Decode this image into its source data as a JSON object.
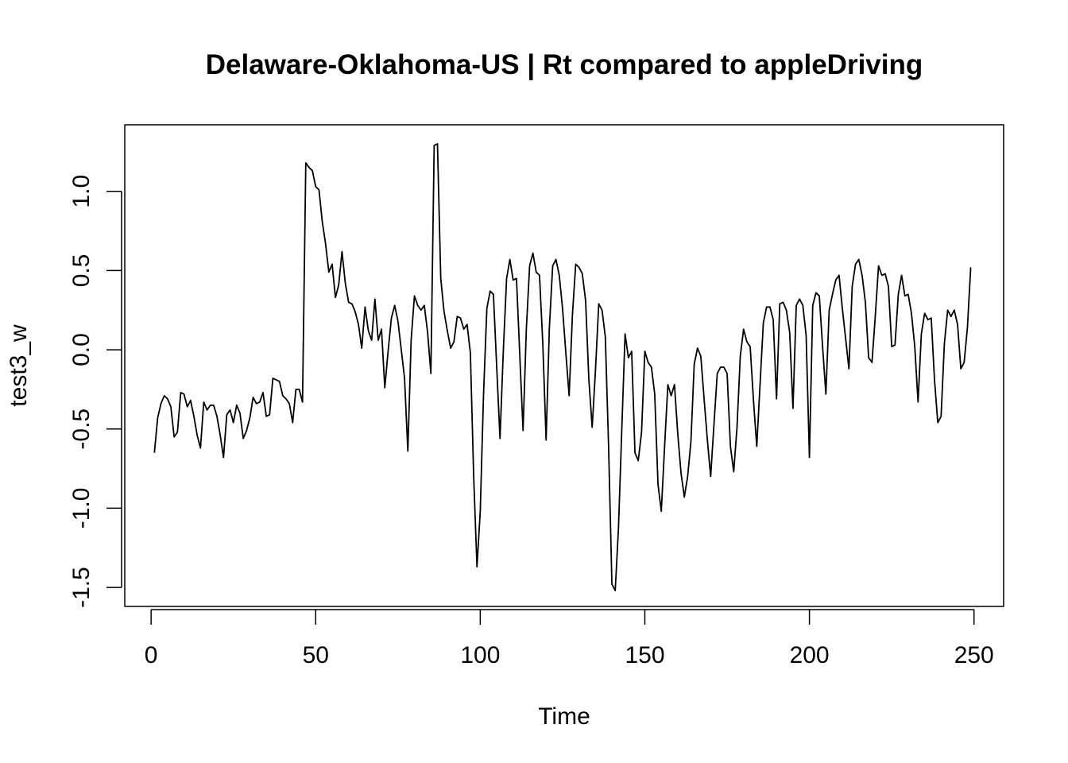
{
  "chart_data": {
    "type": "line",
    "title": "Delaware-Oklahoma-US | Rt compared to appleDriving",
    "xlabel": "Time",
    "ylabel": "test3_w",
    "xlim": [
      -8,
      259
    ],
    "ylim": [
      -1.62,
      1.42
    ],
    "x_ticks": [
      0,
      50,
      100,
      150,
      200,
      250
    ],
    "y_ticks": [
      -1.5,
      -1.0,
      -0.5,
      0.0,
      0.5,
      1.0
    ],
    "x_tick_labels": [
      "0",
      "50",
      "100",
      "150",
      "200",
      "250"
    ],
    "y_tick_labels": [
      "-1.5",
      "-1.0",
      "-0.5",
      "0.0",
      "0.5",
      "1.0"
    ],
    "grid": false,
    "legend": "none",
    "line_color": "#000000",
    "x_start": 1,
    "series": [
      {
        "values": [
          -0.65,
          -0.43,
          -0.34,
          -0.29,
          -0.31,
          -0.36,
          -0.55,
          -0.52,
          -0.27,
          -0.28,
          -0.36,
          -0.32,
          -0.42,
          -0.54,
          -0.62,
          -0.33,
          -0.38,
          -0.35,
          -0.35,
          -0.42,
          -0.54,
          -0.68,
          -0.41,
          -0.38,
          -0.46,
          -0.35,
          -0.4,
          -0.56,
          -0.51,
          -0.43,
          -0.3,
          -0.34,
          -0.33,
          -0.27,
          -0.42,
          -0.41,
          -0.18,
          -0.19,
          -0.2,
          -0.29,
          -0.31,
          -0.34,
          -0.46,
          -0.25,
          -0.25,
          -0.33,
          1.18,
          1.15,
          1.13,
          1.03,
          1.01,
          0.81,
          0.67,
          0.49,
          0.54,
          0.33,
          0.41,
          0.62,
          0.42,
          0.3,
          0.29,
          0.24,
          0.16,
          0.01,
          0.27,
          0.12,
          0.06,
          0.32,
          0.06,
          0.13,
          -0.24,
          -0.01,
          0.2,
          0.28,
          0.18,
          0.0,
          -0.18,
          -0.64,
          0.06,
          0.34,
          0.28,
          0.25,
          0.28,
          0.11,
          -0.15,
          1.29,
          1.3,
          0.45,
          0.24,
          0.12,
          0.01,
          0.05,
          0.21,
          0.2,
          0.13,
          0.16,
          -0.02,
          -0.8,
          -1.37,
          -1.02,
          -0.28,
          0.26,
          0.37,
          0.35,
          -0.11,
          -0.56,
          -0.01,
          0.45,
          0.57,
          0.44,
          0.45,
          -0.03,
          -0.51,
          0.13,
          0.53,
          0.61,
          0.49,
          0.47,
          0.04,
          -0.57,
          0.14,
          0.53,
          0.57,
          0.47,
          0.26,
          -0.02,
          -0.29,
          0.22,
          0.54,
          0.52,
          0.48,
          0.31,
          -0.19,
          -0.49,
          -0.13,
          0.29,
          0.25,
          0.08,
          -0.62,
          -1.48,
          -1.52,
          -1.12,
          -0.5,
          0.1,
          -0.05,
          -0.01,
          -0.65,
          -0.7,
          -0.52,
          -0.01,
          -0.08,
          -0.11,
          -0.28,
          -0.85,
          -1.02,
          -0.61,
          -0.22,
          -0.29,
          -0.22,
          -0.53,
          -0.78,
          -0.93,
          -0.8,
          -0.58,
          -0.09,
          0.01,
          -0.04,
          -0.31,
          -0.57,
          -0.8,
          -0.47,
          -0.15,
          -0.11,
          -0.11,
          -0.15,
          -0.61,
          -0.77,
          -0.49,
          -0.04,
          0.13,
          0.05,
          0.02,
          -0.32,
          -0.61,
          -0.22,
          0.17,
          0.27,
          0.27,
          0.19,
          -0.31,
          0.29,
          0.3,
          0.25,
          0.11,
          -0.37,
          0.28,
          0.32,
          0.28,
          0.09,
          -0.68,
          0.28,
          0.36,
          0.34,
          0.02,
          -0.28,
          0.25,
          0.35,
          0.44,
          0.47,
          0.26,
          0.07,
          -0.12,
          0.4,
          0.54,
          0.57,
          0.47,
          0.3,
          -0.05,
          -0.08,
          0.21,
          0.53,
          0.47,
          0.48,
          0.4,
          0.02,
          0.03,
          0.35,
          0.47,
          0.34,
          0.35,
          0.23,
          0.02,
          -0.33,
          0.1,
          0.23,
          0.19,
          0.2,
          -0.19,
          -0.46,
          -0.42,
          0.04,
          0.25,
          0.21,
          0.25,
          0.16,
          -0.12,
          -0.08,
          0.14,
          0.52
        ]
      }
    ]
  }
}
